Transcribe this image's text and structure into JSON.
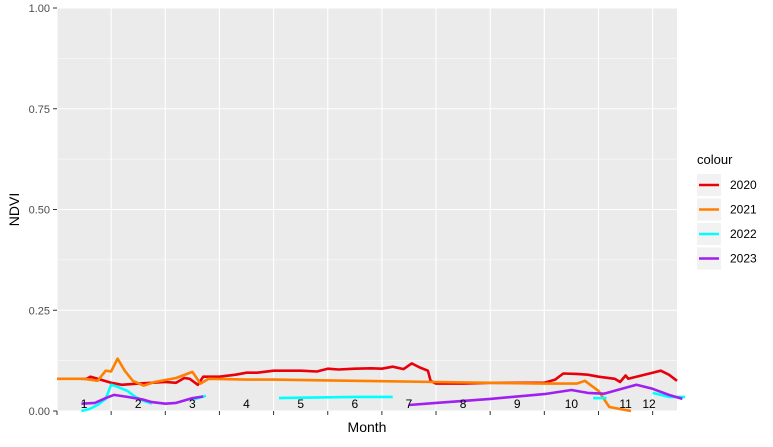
{
  "chart_data": {
    "type": "line",
    "xlabel": "Month",
    "ylabel": "NDVI",
    "xlim": [
      1,
      12.45
    ],
    "ylim": [
      0,
      1
    ],
    "yticks": [
      0.0,
      0.25,
      0.5,
      0.75,
      1.0
    ],
    "ytick_labels": [
      "0.00",
      "0.25",
      "0.50",
      "0.75",
      "1.00"
    ],
    "x_category_labels": [
      "1",
      "2",
      "3",
      "4",
      "5",
      "6",
      "7",
      "8",
      "9",
      "10",
      "11",
      "12"
    ],
    "x_label_positions": [
      1.5,
      2.5,
      3.5,
      4.5,
      5.5,
      6.5,
      7.5,
      8.5,
      9.5,
      10.5,
      11.5,
      12.5
    ],
    "grid": true,
    "background": "#ebebeb",
    "legend": {
      "title": "colour",
      "placement": "right"
    },
    "series": [
      {
        "name": "2020",
        "color": "#e8000b",
        "points": [
          [
            1.45,
            0.08
          ],
          [
            1.55,
            0.08
          ],
          [
            1.62,
            0.085
          ],
          [
            1.75,
            0.08
          ],
          [
            2.0,
            0.07
          ],
          [
            2.2,
            0.065
          ],
          [
            2.5,
            0.068
          ],
          [
            3.0,
            0.072
          ],
          [
            3.2,
            0.07
          ],
          [
            3.35,
            0.082
          ],
          [
            3.45,
            0.08
          ],
          [
            3.55,
            0.07
          ],
          [
            3.6,
            0.065
          ],
          [
            3.7,
            0.085
          ],
          [
            4.0,
            0.085
          ],
          [
            4.3,
            0.09
          ],
          [
            4.5,
            0.095
          ],
          [
            4.7,
            0.095
          ],
          [
            5.0,
            0.1
          ],
          [
            5.5,
            0.1
          ],
          [
            5.8,
            0.098
          ],
          [
            6.0,
            0.105
          ],
          [
            6.2,
            0.103
          ],
          [
            6.5,
            0.105
          ],
          [
            6.8,
            0.106
          ],
          [
            7.0,
            0.105
          ],
          [
            7.2,
            0.11
          ],
          [
            7.4,
            0.104
          ],
          [
            7.55,
            0.118
          ],
          [
            7.7,
            0.108
          ],
          [
            7.85,
            0.1
          ],
          [
            7.9,
            0.075
          ],
          [
            8.0,
            0.068
          ],
          [
            8.5,
            0.068
          ],
          [
            9.0,
            0.07
          ],
          [
            9.5,
            0.07
          ],
          [
            10.0,
            0.07
          ],
          [
            10.2,
            0.078
          ],
          [
            10.35,
            0.093
          ],
          [
            10.6,
            0.092
          ],
          [
            10.8,
            0.09
          ],
          [
            11.0,
            0.085
          ],
          [
            11.3,
            0.08
          ],
          [
            11.4,
            0.072
          ],
          [
            11.5,
            0.088
          ],
          [
            11.55,
            0.08
          ],
          [
            11.7,
            0.085
          ],
          [
            12.0,
            0.095
          ],
          [
            12.15,
            0.1
          ],
          [
            12.3,
            0.09
          ],
          [
            12.45,
            0.075
          ]
        ]
      },
      {
        "name": "2021",
        "color": "#ff7f00",
        "points": [
          [
            1.0,
            0.08
          ],
          [
            1.5,
            0.08
          ],
          [
            1.75,
            0.075
          ],
          [
            1.9,
            0.1
          ],
          [
            2.0,
            0.098
          ],
          [
            2.12,
            0.13
          ],
          [
            2.25,
            0.1
          ],
          [
            2.4,
            0.075
          ],
          [
            2.6,
            0.063
          ],
          [
            2.8,
            0.072
          ],
          [
            3.2,
            0.082
          ],
          [
            3.5,
            0.097
          ],
          [
            3.65,
            0.068
          ],
          [
            3.8,
            0.08
          ],
          [
            4.5,
            0.078
          ],
          [
            5.0,
            0.078
          ],
          [
            6.0,
            0.076
          ],
          [
            7.0,
            0.074
          ],
          [
            8.0,
            0.072
          ],
          [
            9.0,
            0.07
          ],
          [
            10.0,
            0.068
          ],
          [
            10.3,
            0.068
          ],
          [
            10.6,
            0.068
          ],
          [
            10.75,
            0.075
          ],
          [
            11.0,
            0.05
          ],
          [
            11.2,
            0.01
          ],
          [
            11.4,
            0.005
          ],
          [
            11.6,
            0.0
          ]
        ]
      },
      {
        "name": "2022",
        "color": "#00ffff",
        "points": [
          [
            1.45,
            0.0
          ],
          [
            1.6,
            0.005
          ],
          [
            1.75,
            0.015
          ],
          [
            1.9,
            0.03
          ],
          [
            2.0,
            0.065
          ],
          [
            2.12,
            0.06
          ],
          [
            2.3,
            0.05
          ],
          [
            2.45,
            0.035
          ],
          [
            2.6,
            0.025
          ],
          [
            2.75,
            0.018
          ]
        ],
        "segments": [
          [
            [
              1.45,
              0.0
            ],
            [
              1.6,
              0.005
            ],
            [
              1.75,
              0.015
            ],
            [
              1.9,
              0.03
            ],
            [
              2.0,
              0.065
            ],
            [
              2.12,
              0.06
            ],
            [
              2.3,
              0.05
            ],
            [
              2.45,
              0.035
            ],
            [
              2.6,
              0.025
            ],
            [
              2.75,
              0.018
            ]
          ],
          [
            [
              3.5,
              0.028
            ],
            [
              3.75,
              0.038
            ]
          ],
          [
            [
              5.1,
              0.032
            ],
            [
              5.5,
              0.033
            ],
            [
              6.0,
              0.034
            ],
            [
              6.5,
              0.035
            ],
            [
              7.0,
              0.035
            ],
            [
              7.2,
              0.035
            ]
          ],
          [
            [
              10.9,
              0.032
            ],
            [
              11.15,
              0.032
            ]
          ],
          [
            [
              12.0,
              0.045
            ],
            [
              12.3,
              0.035
            ],
            [
              12.6,
              0.035
            ]
          ]
        ]
      },
      {
        "name": "2023",
        "color": "#a020f0",
        "segments": [
          [
            [
              1.45,
              0.018
            ],
            [
              1.7,
              0.02
            ],
            [
              1.9,
              0.032
            ],
            [
              2.05,
              0.04
            ],
            [
              2.3,
              0.035
            ],
            [
              2.6,
              0.028
            ],
            [
              2.75,
              0.022
            ],
            [
              3.0,
              0.018
            ],
            [
              3.2,
              0.02
            ],
            [
              3.5,
              0.032
            ],
            [
              3.7,
              0.036
            ]
          ],
          [
            [
              7.5,
              0.015
            ],
            [
              8.0,
              0.02
            ],
            [
              9.0,
              0.03
            ],
            [
              10.0,
              0.042
            ],
            [
              10.5,
              0.052
            ],
            [
              10.8,
              0.045
            ],
            [
              11.1,
              0.043
            ],
            [
              11.35,
              0.052
            ],
            [
              11.7,
              0.065
            ],
            [
              12.0,
              0.055
            ],
            [
              12.3,
              0.04
            ],
            [
              12.55,
              0.03
            ]
          ]
        ]
      }
    ]
  }
}
